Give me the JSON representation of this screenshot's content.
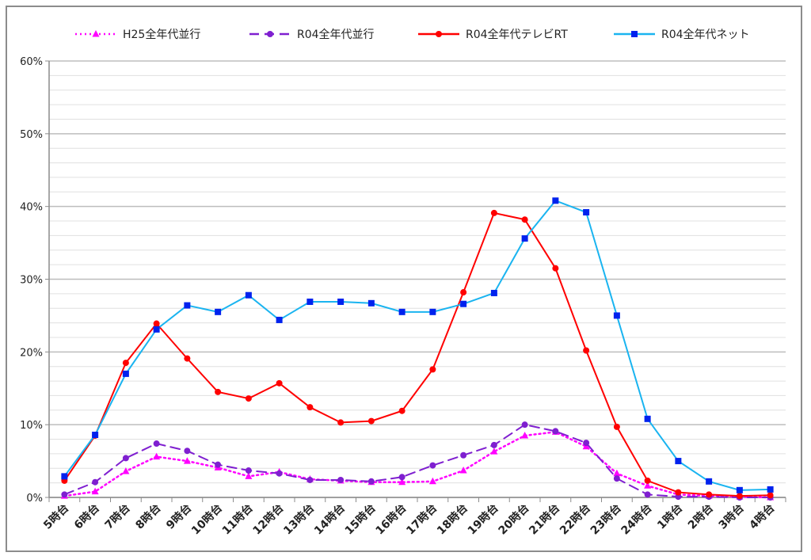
{
  "chart_data": {
    "type": "line",
    "title": "",
    "xlabel": "",
    "ylabel": "",
    "ylim": [
      0,
      60
    ],
    "yticks": [
      "0%",
      "10%",
      "20%",
      "30%",
      "40%",
      "50%",
      "60%"
    ],
    "y_minor_step": 2,
    "grid": true,
    "legend_position": "top",
    "categories": [
      "5時台",
      "6時台",
      "7時台",
      "8時台",
      "9時台",
      "10時台",
      "11時台",
      "12時台",
      "13時台",
      "14時台",
      "15時台",
      "16時台",
      "17時台",
      "18時台",
      "19時台",
      "20時台",
      "21時台",
      "22時台",
      "23時台",
      "24時台",
      "1時台",
      "2時台",
      "3時台",
      "4時台"
    ],
    "series": [
      {
        "name": "H25全年代並行",
        "color": "#ff00ff",
        "style": "dotted",
        "marker": "triangle",
        "values": [
          0.2,
          0.8,
          3.6,
          5.6,
          5.0,
          4.1,
          2.9,
          3.5,
          2.5,
          2.3,
          2.1,
          2.1,
          2.2,
          3.7,
          6.3,
          8.5,
          9.0,
          7.0,
          3.3,
          1.6,
          0.4,
          0.2,
          0.1,
          0.0
        ]
      },
      {
        "name": "R04全年代並行",
        "color": "#7f1fd0",
        "style": "dashed",
        "marker": "circle",
        "values": [
          0.4,
          2.1,
          5.4,
          7.4,
          6.4,
          4.5,
          3.7,
          3.3,
          2.4,
          2.4,
          2.2,
          2.8,
          4.4,
          5.8,
          7.2,
          10.0,
          9.1,
          7.5,
          2.6,
          0.4,
          0.1,
          0.1,
          0.0,
          0.0
        ]
      },
      {
        "name": "R04全年代テレビRT",
        "color": "#ff0000",
        "style": "solid",
        "marker": "circle",
        "values": [
          2.3,
          8.5,
          18.5,
          23.9,
          19.1,
          14.5,
          13.6,
          15.7,
          12.4,
          10.3,
          10.5,
          11.9,
          17.6,
          28.2,
          39.1,
          38.2,
          31.5,
          20.2,
          9.7,
          2.3,
          0.7,
          0.4,
          0.2,
          0.3
        ]
      },
      {
        "name": "R04全年代ネット",
        "color": "#1ab4f0",
        "marker_color": "#0022ee",
        "style": "solid",
        "marker": "square",
        "values": [
          2.9,
          8.6,
          17.0,
          23.1,
          26.4,
          25.5,
          27.8,
          24.4,
          26.9,
          26.9,
          26.7,
          25.5,
          25.5,
          26.6,
          28.1,
          35.6,
          40.8,
          39.2,
          25.0,
          10.8,
          5.0,
          2.2,
          1.0,
          1.1
        ]
      }
    ]
  }
}
